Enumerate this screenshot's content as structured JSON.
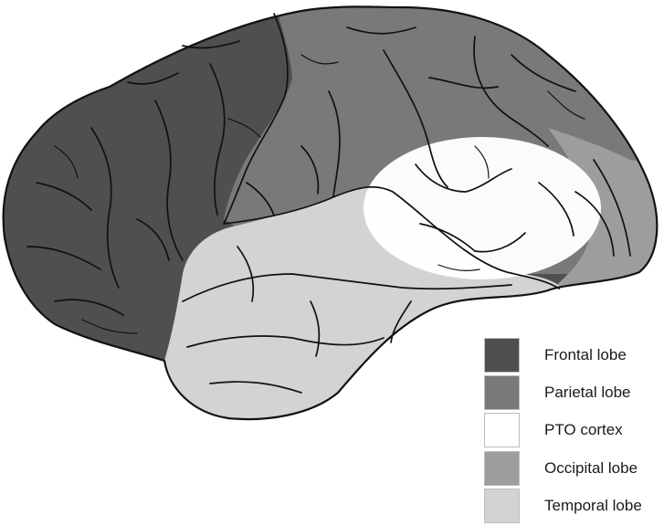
{
  "legend": {
    "items": [
      {
        "label": "Frontal lobe",
        "color": "#4f4f51"
      },
      {
        "label": "Parietal lobe",
        "color": "#78797b"
      },
      {
        "label": "PTO cortex",
        "color": "#ffffff"
      },
      {
        "label": "Occipital lobe",
        "color": "#9c9d9f"
      },
      {
        "label": "Temporal lobe",
        "color": "#d2d3d5"
      }
    ]
  },
  "colors": {
    "outline": "#111111",
    "background": "#ffffff"
  }
}
